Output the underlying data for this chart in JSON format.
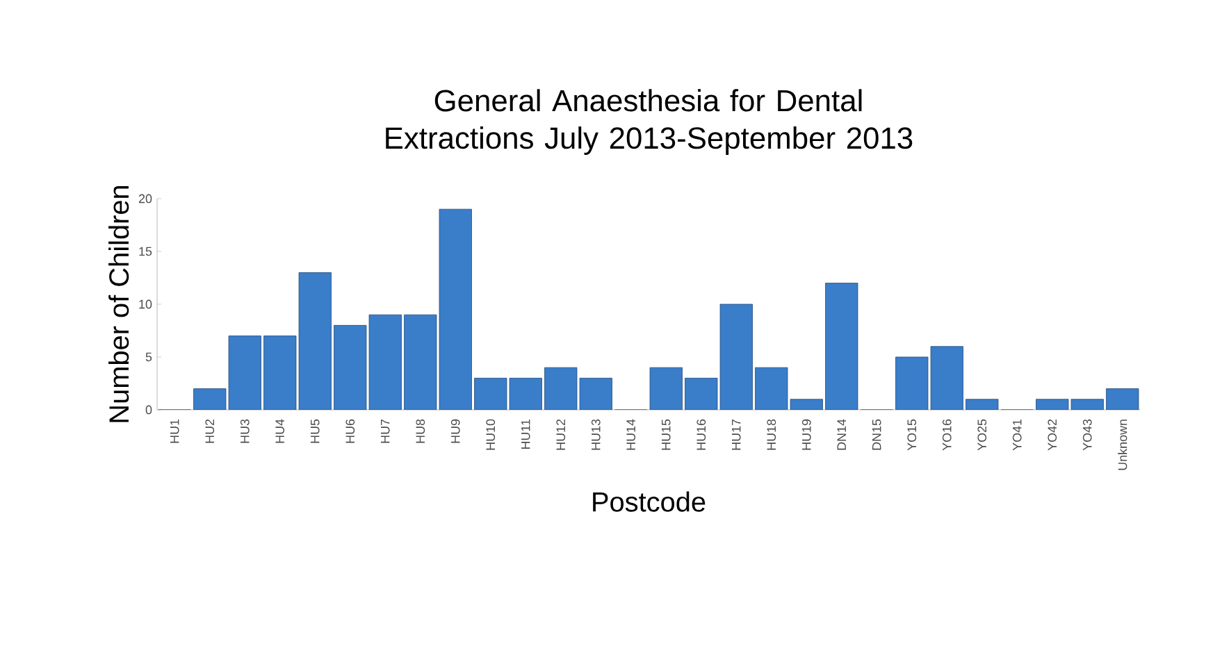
{
  "chart_data": {
    "type": "bar",
    "title": "General Anaesthesia for Dental Extractions July 2013-September 2013",
    "xlabel": "Postcode",
    "ylabel": "Number of Children",
    "categories": [
      "HU1",
      "HU2",
      "HU3",
      "HU4",
      "HU5",
      "HU6",
      "HU7",
      "HU8",
      "HU9",
      "HU10",
      "HU11",
      "HU12",
      "HU13",
      "HU14",
      "HU15",
      "HU16",
      "HU17",
      "HU18",
      "HU19",
      "DN14",
      "DN15",
      "YO15",
      "YO16",
      "YO25",
      "YO41",
      "YO42",
      "YO43",
      "Unknown"
    ],
    "values": [
      0,
      2,
      7,
      7,
      13,
      8,
      9,
      9,
      19,
      3,
      3,
      4,
      3,
      0,
      4,
      3,
      10,
      4,
      1,
      12,
      0,
      5,
      6,
      1,
      0,
      1,
      1,
      2
    ],
    "color": "#3a7dc9",
    "ylim": [
      0,
      20
    ],
    "yticks": [
      0,
      5,
      10,
      15,
      20
    ],
    "grid": false
  }
}
